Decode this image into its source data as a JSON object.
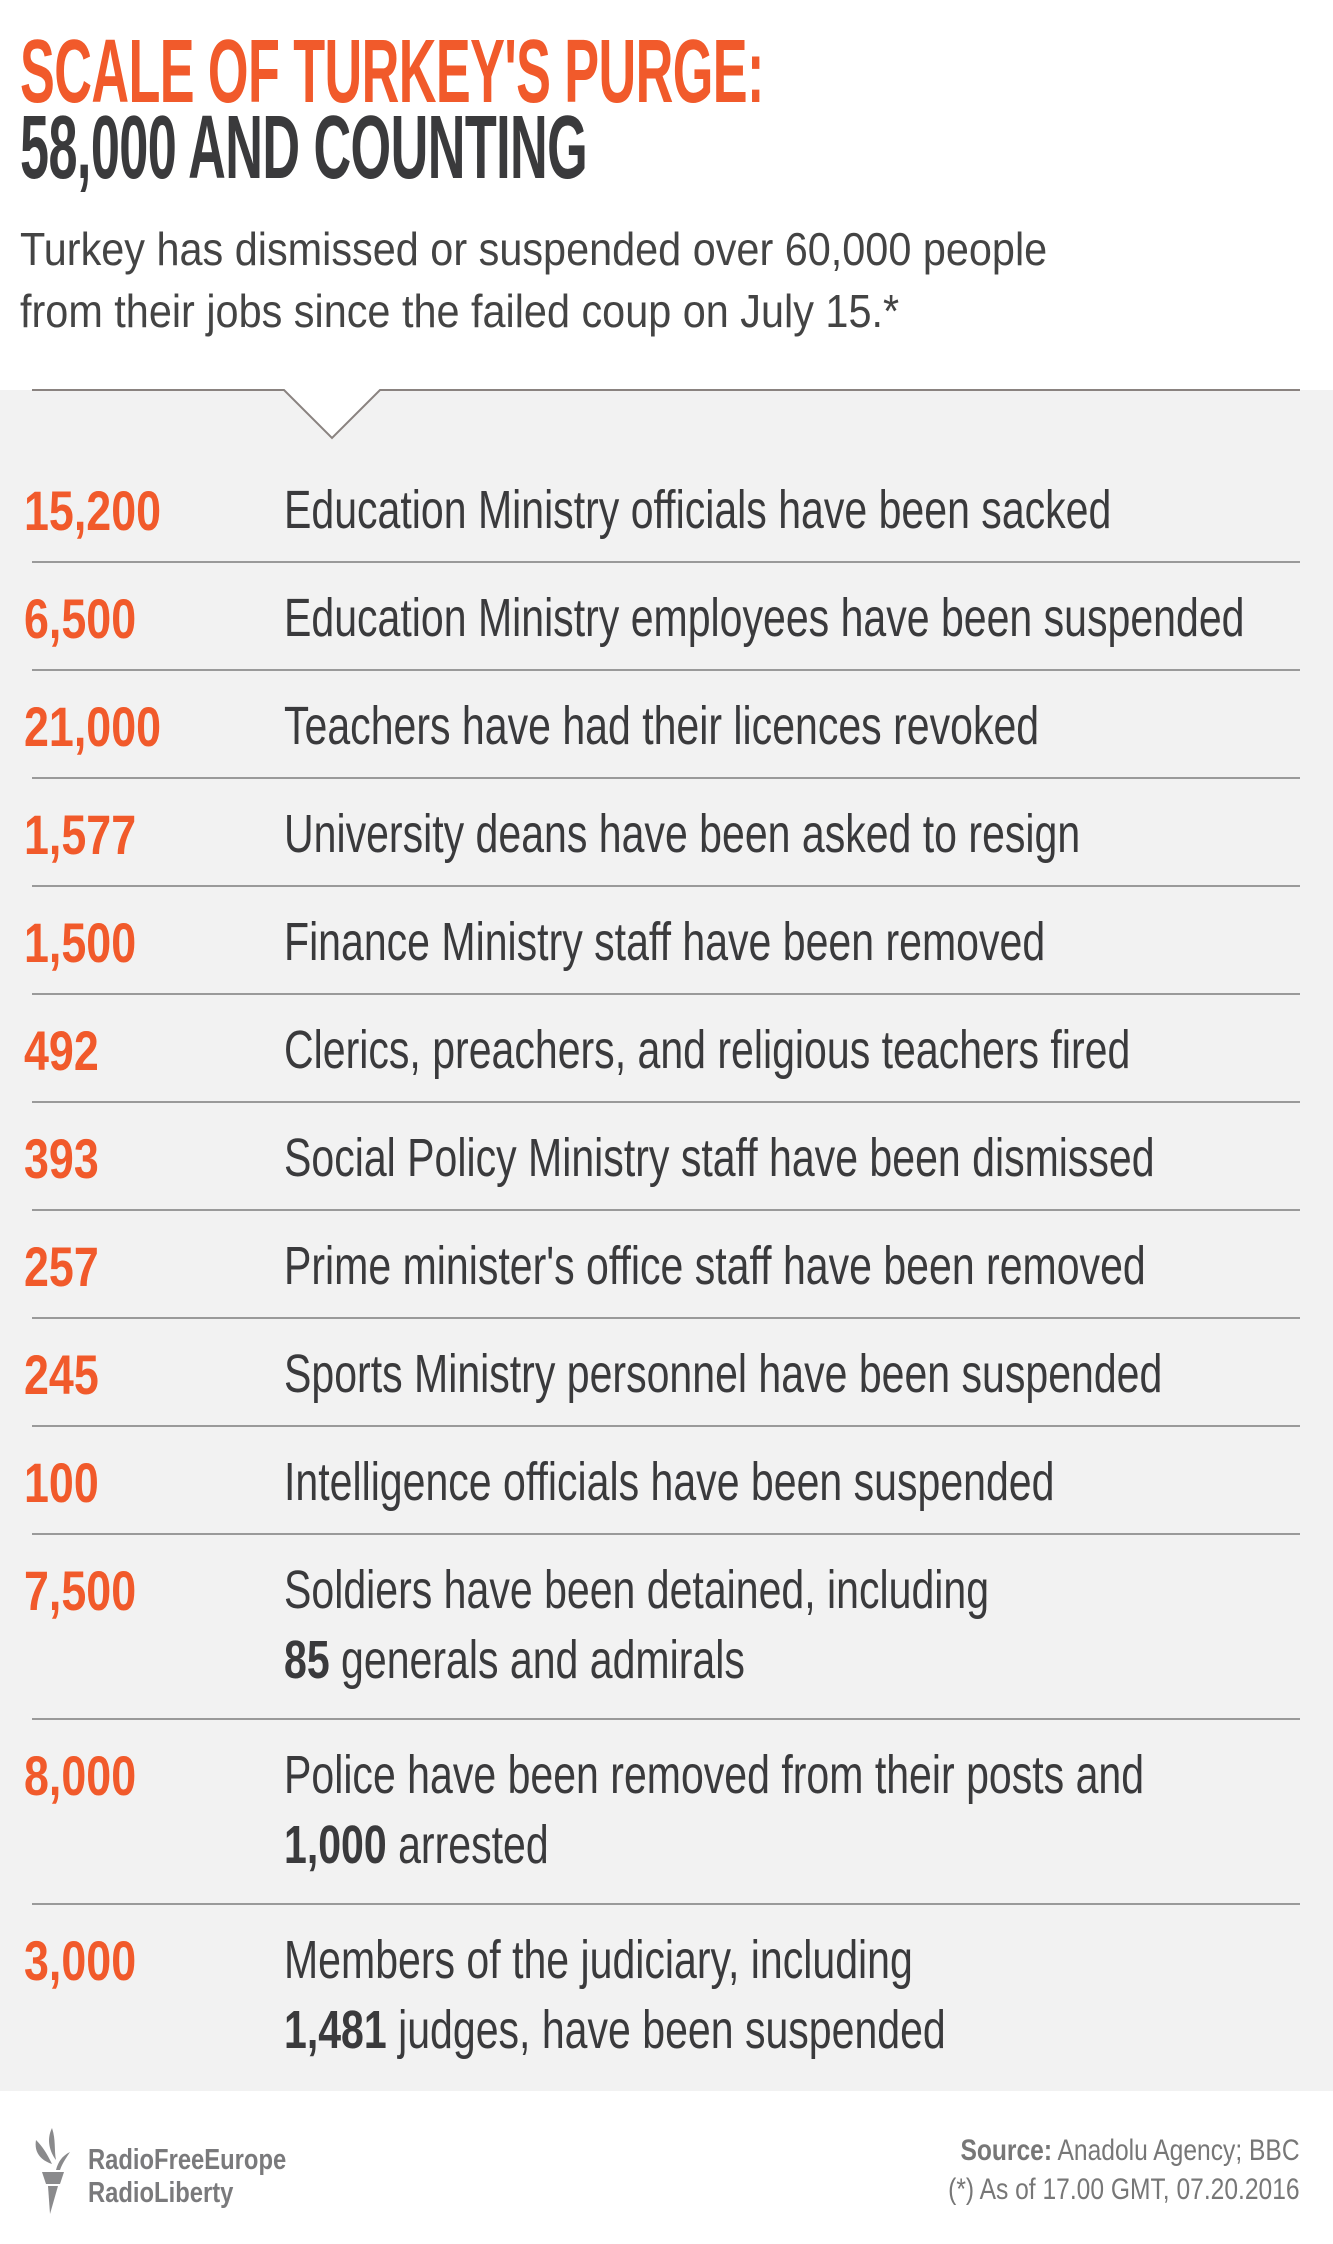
{
  "header": {
    "title_line1": "SCALE OF TURKEY'S PURGE:",
    "title_line2": "58,000 AND COUNTING",
    "subtitle_line1": "Turkey has dismissed or suspended over 60,000 people",
    "subtitle_line2": "from their jobs since the failed coup on July 15.*"
  },
  "colors": {
    "accent": "#f15a2b",
    "text": "#3a3a3c",
    "panel": "#f2f2f2"
  },
  "rows": [
    {
      "number": "15,200",
      "lines": [
        [
          {
            "text": "Education Ministry officials have been sacked",
            "bold": false
          }
        ]
      ]
    },
    {
      "number": "6,500",
      "lines": [
        [
          {
            "text": "Education Ministry employees have been suspended",
            "bold": false
          }
        ]
      ]
    },
    {
      "number": "21,000",
      "lines": [
        [
          {
            "text": "Teachers have had their licences revoked",
            "bold": false
          }
        ]
      ]
    },
    {
      "number": "1,577",
      "lines": [
        [
          {
            "text": "University deans have been asked to resign",
            "bold": false
          }
        ]
      ]
    },
    {
      "number": "1,500",
      "lines": [
        [
          {
            "text": "Finance Ministry staff have been removed",
            "bold": false
          }
        ]
      ]
    },
    {
      "number": "492",
      "lines": [
        [
          {
            "text": "Clerics, preachers, and religious teachers fired",
            "bold": false
          }
        ]
      ]
    },
    {
      "number": "393",
      "lines": [
        [
          {
            "text": "Social Policy Ministry staff have been dismissed",
            "bold": false
          }
        ]
      ]
    },
    {
      "number": "257",
      "lines": [
        [
          {
            "text": "Prime minister's office staff have been removed",
            "bold": false
          }
        ]
      ]
    },
    {
      "number": "245",
      "lines": [
        [
          {
            "text": "Sports Ministry personnel have been suspended",
            "bold": false
          }
        ]
      ]
    },
    {
      "number": "100",
      "lines": [
        [
          {
            "text": "Intelligence officials have been suspended",
            "bold": false
          }
        ]
      ]
    },
    {
      "number": "7,500",
      "lines": [
        [
          {
            "text": "Soldiers have been detained, including",
            "bold": false
          }
        ],
        [
          {
            "text": "85",
            "bold": true
          },
          {
            "text": " generals and admirals",
            "bold": false
          }
        ]
      ]
    },
    {
      "number": "8,000",
      "lines": [
        [
          {
            "text": "Police have been removed from their posts and",
            "bold": false
          }
        ],
        [
          {
            "text": "1,000",
            "bold": true
          },
          {
            "text": " arrested",
            "bold": false
          }
        ]
      ]
    },
    {
      "number": "3,000",
      "lines": [
        [
          {
            "text": "Members of the judiciary, including",
            "bold": false
          }
        ],
        [
          {
            "text": "1,481",
            "bold": true
          },
          {
            "text": " judges, have been suspended",
            "bold": false
          }
        ]
      ]
    }
  ],
  "footer": {
    "logo_line1": "RadioFreeEurope",
    "logo_line2": "RadioLiberty",
    "logo_icon": "torch-icon",
    "source_label": "Source:",
    "source_text": " Anadolu Agency; BBC",
    "note": "(*) As of 17.00 GMT, 07.20.2016"
  }
}
